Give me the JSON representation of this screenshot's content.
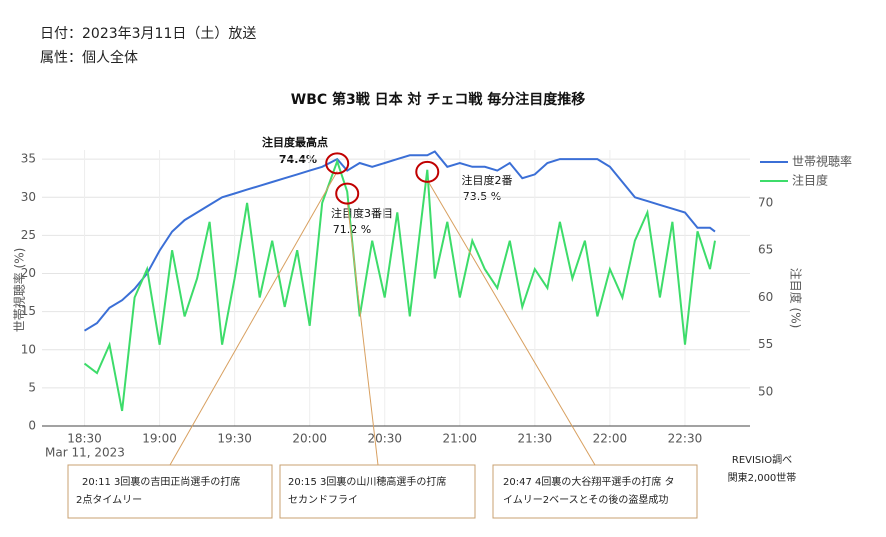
{
  "header": {
    "date": "日付：2023年3月11日（土）放送",
    "attribute": "属性：個人全体"
  },
  "chart_data": {
    "type": "line",
    "title": "WBC  第3戦  日本 対 チェコ戦  毎分注目度推移",
    "y_label": "世帯視聴率 (%)",
    "y2_label": "注目度 (%)",
    "x_date_label": "Mar 11, 2023",
    "x": [
      "18:30",
      "18:35",
      "18:40",
      "18:45",
      "18:50",
      "18:55",
      "19:00",
      "19:05",
      "19:10",
      "19:15",
      "19:20",
      "19:25",
      "19:30",
      "19:35",
      "19:40",
      "19:45",
      "19:50",
      "19:55",
      "20:00",
      "20:05",
      "20:11",
      "20:15",
      "20:20",
      "20:25",
      "20:30",
      "20:35",
      "20:40",
      "20:47",
      "20:50",
      "20:55",
      "21:00",
      "21:05",
      "21:10",
      "21:15",
      "21:20",
      "21:25",
      "21:30",
      "21:35",
      "21:40",
      "21:45",
      "21:50",
      "21:55",
      "22:00",
      "22:05",
      "22:10",
      "22:15",
      "22:20",
      "22:25",
      "22:30",
      "22:35",
      "22:40",
      "22:42"
    ],
    "series": [
      {
        "name": "世帯視聴率",
        "color": "#3b6fd6",
        "values": [
          12.5,
          13.5,
          15.5,
          16.5,
          18,
          20,
          23,
          25.5,
          27,
          28,
          29,
          30,
          30.5,
          31,
          31.5,
          32,
          32.5,
          33,
          33.5,
          34,
          35,
          33.5,
          34.5,
          34,
          34.5,
          35,
          35.5,
          35.5,
          36,
          34,
          34.5,
          34,
          34,
          33.5,
          34.5,
          32.5,
          33,
          34.5,
          35,
          35,
          35,
          35,
          34,
          32,
          30,
          29.5,
          29,
          28.5,
          28,
          26,
          26,
          25.5
        ]
      },
      {
        "name": "注目度",
        "color": "#3ddc6a",
        "axis": "y2",
        "values": [
          53,
          52,
          55,
          48,
          60,
          63,
          55,
          65,
          58,
          62,
          68,
          55,
          62,
          70,
          60,
          66,
          59,
          65,
          57,
          70,
          74.4,
          71.2,
          58,
          66,
          60,
          69,
          58,
          73.5,
          62,
          68,
          60,
          66,
          63,
          61,
          66,
          59,
          63,
          61,
          68,
          62,
          66,
          58,
          63,
          60,
          66,
          69,
          60,
          68,
          55,
          67,
          63,
          66
        ]
      }
    ],
    "xlim": [
      "18:13",
      "22:56"
    ],
    "xticks": [
      "18:30",
      "19:00",
      "19:30",
      "20:00",
      "20:30",
      "21:00",
      "21:30",
      "22:00",
      "22:30"
    ],
    "ylim": [
      0,
      36.2
    ],
    "yticks": [
      0,
      5,
      10,
      15,
      20,
      25,
      30,
      35
    ],
    "y2lim": [
      46.4,
      75.6
    ],
    "y2ticks": [
      50,
      55,
      60,
      65,
      70
    ],
    "grid": true,
    "legend": "top-right",
    "annotations": [
      {
        "title": "注目度最高点",
        "text": "74.4%"
      },
      {
        "title": "注目度3番目",
        "text": "71.2 %"
      },
      {
        "title": "注目度2番",
        "text": "73.5 %"
      }
    ],
    "callouts": [
      [
        "20:11  3回裏の吉田正尚選手の打席",
        "2点タイムリー"
      ],
      [
        "20:15  3回裏の山川穂高選手の打席",
        "セカンドフライ"
      ],
      [
        "20:47  4回裏の大谷翔平選手の打席  タ",
        "イムリー2ベースとその後の盗塁成功"
      ]
    ],
    "source": [
      "REVISIO調べ",
      "関東2,000世帯"
    ]
  }
}
